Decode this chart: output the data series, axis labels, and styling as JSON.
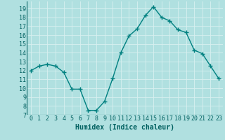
{
  "x": [
    0,
    1,
    2,
    3,
    4,
    5,
    6,
    7,
    8,
    9,
    10,
    11,
    12,
    13,
    14,
    15,
    16,
    17,
    18,
    19,
    20,
    21,
    22,
    23
  ],
  "y": [
    12,
    12.5,
    12.7,
    12.5,
    11.8,
    9.9,
    9.9,
    7.5,
    7.5,
    8.5,
    11.1,
    14.0,
    15.9,
    16.7,
    18.2,
    19.2,
    18.0,
    17.6,
    16.6,
    16.3,
    14.3,
    13.9,
    12.5,
    11.1
  ],
  "line_color": "#008080",
  "marker": "+",
  "marker_color": "#008080",
  "bg_color": "#b0e0e0",
  "grid_color": "#d8f0f0",
  "xlabel": "Humidex (Indice chaleur)",
  "xlim": [
    -0.5,
    23.5
  ],
  "ylim": [
    7,
    19.8
  ],
  "yticks": [
    7,
    8,
    9,
    10,
    11,
    12,
    13,
    14,
    15,
    16,
    17,
    18,
    19
  ],
  "xticks": [
    0,
    1,
    2,
    3,
    4,
    5,
    6,
    7,
    8,
    9,
    10,
    11,
    12,
    13,
    14,
    15,
    16,
    17,
    18,
    19,
    20,
    21,
    22,
    23
  ],
  "xlabel_fontsize": 7,
  "tick_fontsize": 6,
  "line_width": 1.0,
  "marker_size": 4
}
